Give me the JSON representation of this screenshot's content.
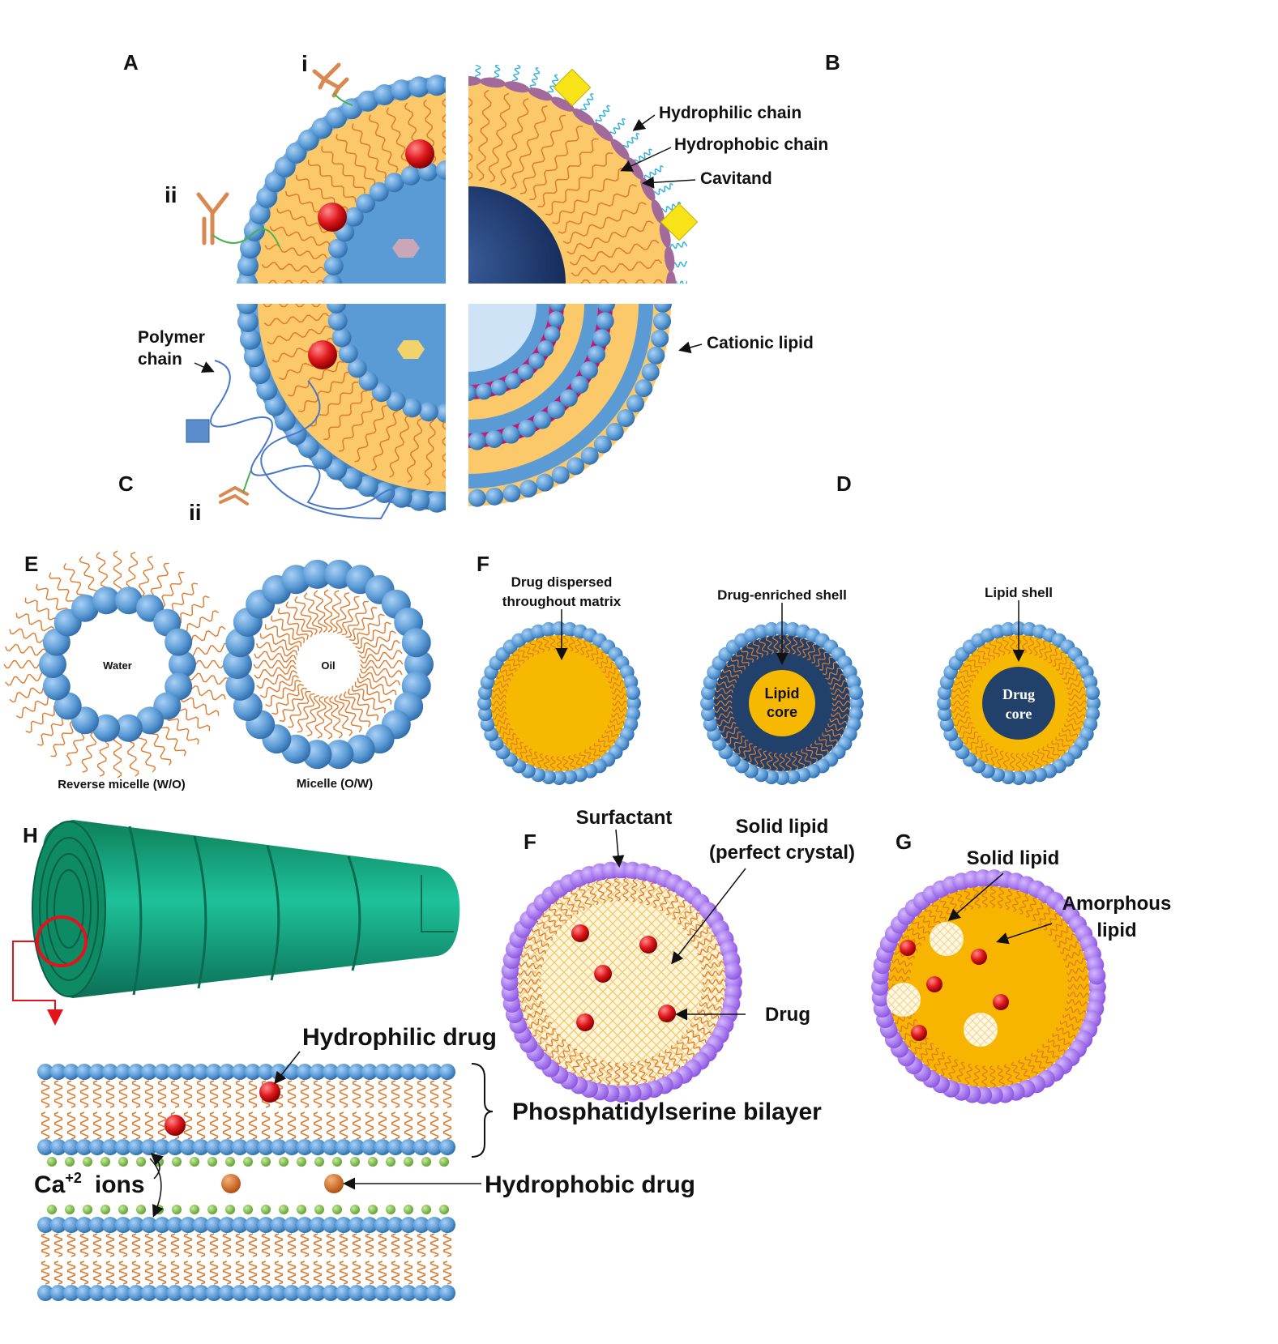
{
  "colors": {
    "head": "#5b9bd5",
    "head_dark": "#3d78b8",
    "lipid": "#fbc96a",
    "tail": "#e07a2e",
    "drug": "#e0191e",
    "navy": "#1f4e79",
    "gold": "#f5b400",
    "purple": "#9966e6",
    "green_tube": "#1aa17a",
    "pink": "#e0147e",
    "cyan_chain": "#3ab3dc",
    "calcium": "#7ab648",
    "hydrophobic_drug": "#d2691e",
    "pointer_red": "#e3121b"
  },
  "panel_letters": {
    "A": "A",
    "B": "B",
    "C": "C",
    "D": "D",
    "E": "E",
    "F_top": "F",
    "F_bottom": "F",
    "G": "G",
    "H": "H"
  },
  "quadrant_view": {
    "label_i": "i",
    "label_ii_top": "ii",
    "label_ii_bottom": "ii",
    "hydrophilic_chain": "Hydrophilic chain",
    "hydrophobic_chain": "Hydrophobic chain",
    "cavitand": "Cavitand",
    "polymer_chain_line1": "Polymer",
    "polymer_chain_line2": "chain",
    "cationic_lipid": "Cationic lipid"
  },
  "micelles": {
    "reverse_core": "Water",
    "reverse_caption": "Reverse micelle (W/O)",
    "normal_core": "Oil",
    "normal_caption": "Micelle (O/W)"
  },
  "sln_models": {
    "model1_line1": "Drug dispersed",
    "model1_line2": "throughout matrix",
    "model2_label": "Drug-enriched shell",
    "model2_core_line1": "Lipid",
    "model2_core_line2": "core",
    "model3_label": "Lipid shell",
    "model3_core_line1": "Drug",
    "model3_core_line2": "core"
  },
  "sln": {
    "surfactant": "Surfactant",
    "solid_lipid_line1": "Solid lipid",
    "solid_lipid_line2": "(perfect crystal)",
    "drug": "Drug"
  },
  "nlc": {
    "solid_lipid": "Solid lipid",
    "amorphous_line1": "Amorphous",
    "amorphous_line2": "lipid"
  },
  "cochleate": {
    "hydrophilic_drug": "Hydrophilic drug",
    "bilayer": "Phosphatidylserine bilayer",
    "ca_base": "Ca",
    "ca_charge": "+2",
    "ions": "ions",
    "hydrophobic_drug": "Hydrophobic drug"
  }
}
